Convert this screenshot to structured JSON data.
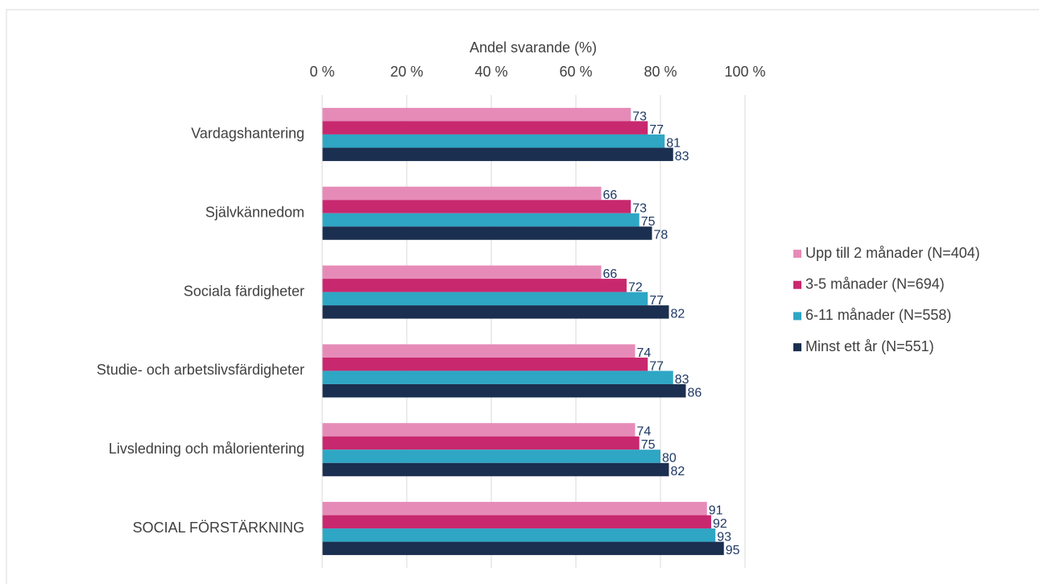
{
  "chart_data": {
    "type": "bar",
    "orientation": "horizontal",
    "x_label": "Andel svarande (%)",
    "categories": [
      "Vardagshantering",
      "Självkännedom",
      "Sociala färdigheter",
      "Studie- och arbetslivsfärdigheter",
      "Livsledning och målorientering",
      "SOCIAL FÖRSTÄRKNING"
    ],
    "series": [
      {
        "name": "Upp till 2 månader (N=404)",
        "color": "#e68bb8",
        "values": [
          73,
          66,
          66,
          74,
          74,
          91
        ]
      },
      {
        "name": "3-5 månader (N=694)",
        "color": "#c8286e",
        "values": [
          77,
          73,
          72,
          77,
          75,
          92
        ]
      },
      {
        "name": "6-11 månader (N=558)",
        "color": "#2ea6c4",
        "values": [
          81,
          75,
          77,
          83,
          80,
          93
        ]
      },
      {
        "name": "Minst ett år (N=551)",
        "color": "#1b2f50",
        "values": [
          83,
          78,
          82,
          86,
          82,
          95
        ]
      }
    ],
    "xlim": [
      0,
      100
    ],
    "xticks": [
      {
        "value": 0,
        "label": "0 %"
      },
      {
        "value": 20,
        "label": "20 %"
      },
      {
        "value": 40,
        "label": "40 %"
      },
      {
        "value": 60,
        "label": "60 %"
      },
      {
        "value": 80,
        "label": "80 %"
      },
      {
        "value": 100,
        "label": "100 %"
      }
    ],
    "grid": true,
    "legend": "right"
  }
}
